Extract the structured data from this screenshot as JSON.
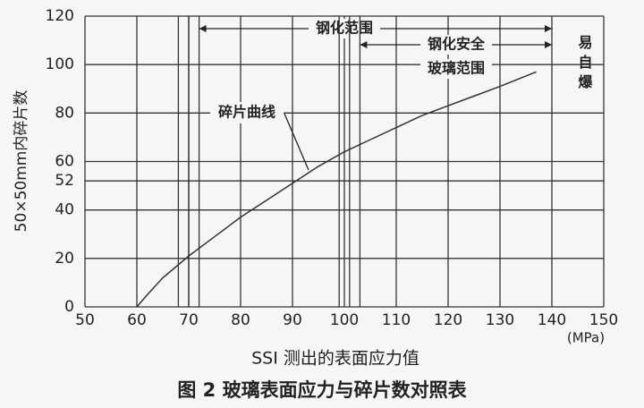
{
  "chart_data": {
    "type": "line",
    "title": "图 2  玻璃表面应力与碎片数对照表",
    "xlabel": "SSI 测出的表面应力值",
    "x_unit": "(MPa)",
    "ylabel": "50×50mm内碎片数",
    "x": [
      60,
      62,
      65,
      70,
      75,
      80,
      85,
      90,
      95,
      100,
      105,
      110,
      115,
      120,
      125,
      130,
      137
    ],
    "values": [
      0,
      5,
      12,
      21,
      29,
      37,
      44,
      51,
      58,
      64,
      69,
      74,
      79,
      83,
      87,
      91,
      97
    ],
    "color": "#333333",
    "curve_label": "碎片曲线",
    "xlim": [
      50,
      150
    ],
    "ylim": [
      0,
      120
    ],
    "xticks": [
      50,
      60,
      70,
      80,
      90,
      100,
      110,
      120,
      130,
      140,
      150
    ],
    "yticks": [
      0,
      20,
      40,
      52,
      60,
      80,
      100,
      120
    ],
    "grid": true,
    "ranges": [
      {
        "label": [
          "钢化范围"
        ],
        "lines": [
          68,
          70,
          72
        ],
        "start": 72,
        "end": 140
      },
      {
        "label": [
          "钢化安全",
          "玻璃范围"
        ],
        "lines": [
          99,
          101,
          103
        ],
        "start": 103,
        "end": 140
      }
    ],
    "self_explode_label": "易自爆"
  }
}
